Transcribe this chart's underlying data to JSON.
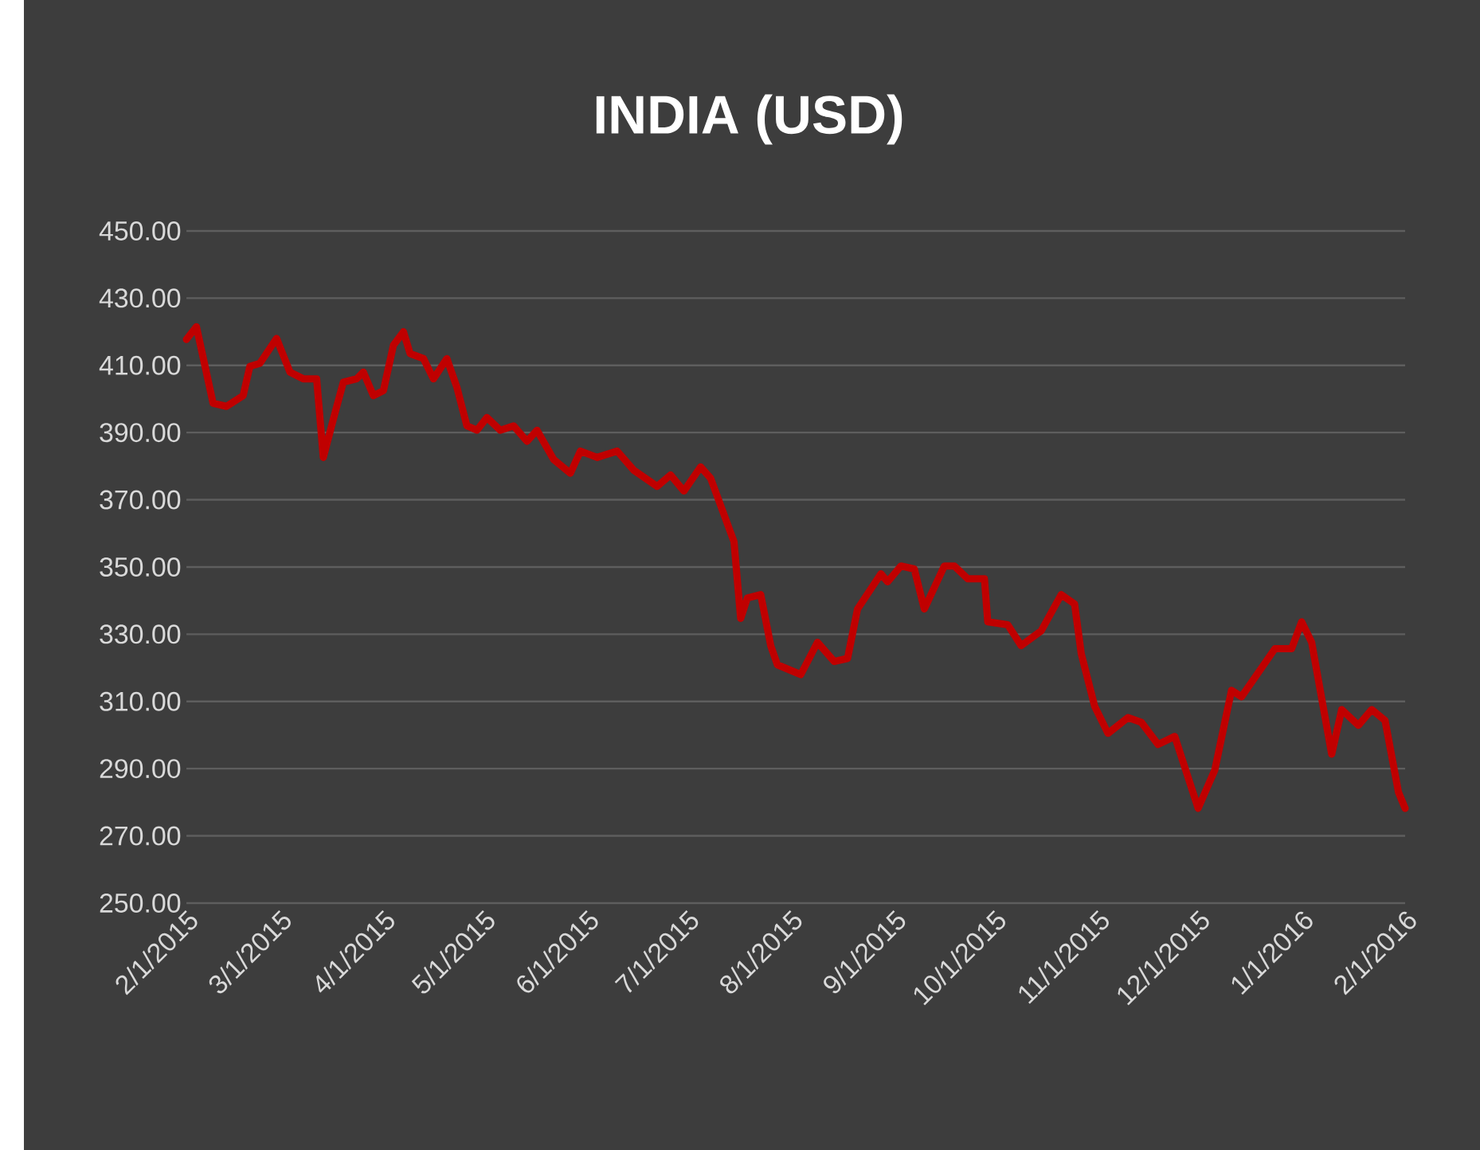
{
  "chart_data": {
    "type": "line",
    "title": "INDIA (USD)",
    "x": [
      "2015-02-01",
      "2015-02-04",
      "2015-02-09",
      "2015-02-13",
      "2015-02-18",
      "2015-02-20",
      "2015-02-23",
      "2015-02-28",
      "2015-03-04",
      "2015-03-08",
      "2015-03-12",
      "2015-03-14",
      "2015-03-17",
      "2015-03-20",
      "2015-03-24",
      "2015-03-26",
      "2015-03-29",
      "2015-04-01",
      "2015-04-04",
      "2015-04-07",
      "2015-04-09",
      "2015-04-13",
      "2015-04-16",
      "2015-04-20",
      "2015-04-23",
      "2015-04-26",
      "2015-04-29",
      "2015-05-02",
      "2015-05-06",
      "2015-05-10",
      "2015-05-14",
      "2015-05-17",
      "2015-05-22",
      "2015-05-27",
      "2015-05-30",
      "2015-06-04",
      "2015-06-10",
      "2015-06-15",
      "2015-06-22",
      "2015-06-26",
      "2015-06-30",
      "2015-07-05",
      "2015-07-08",
      "2015-07-15",
      "2015-07-17",
      "2015-07-19",
      "2015-07-23",
      "2015-07-26",
      "2015-07-28",
      "2015-08-04",
      "2015-08-09",
      "2015-08-14",
      "2015-08-18",
      "2015-08-21",
      "2015-08-28",
      "2015-08-30",
      "2015-09-03",
      "2015-09-07",
      "2015-09-10",
      "2015-09-16",
      "2015-09-19",
      "2015-09-23",
      "2015-09-28",
      "2015-09-29",
      "2015-10-05",
      "2015-10-09",
      "2015-10-15",
      "2015-10-21",
      "2015-10-25",
      "2015-10-27",
      "2015-10-31",
      "2015-11-04",
      "2015-11-10",
      "2015-11-14",
      "2015-11-19",
      "2015-11-24",
      "2015-12-01",
      "2015-12-06",
      "2015-12-11",
      "2015-12-14",
      "2015-12-24",
      "2015-12-29",
      "2016-01-01",
      "2016-01-04",
      "2016-01-10",
      "2016-01-13",
      "2016-01-18",
      "2016-01-22",
      "2016-01-26",
      "2016-01-30",
      "2016-02-01"
    ],
    "values": [
      417.7,
      421.5,
      398.7,
      397.8,
      401,
      409.7,
      410.6,
      418,
      408,
      406,
      406,
      382.6,
      394,
      405,
      406,
      408,
      401,
      402.5,
      416,
      420,
      413.5,
      412,
      406,
      412,
      403.5,
      392,
      390.7,
      394.5,
      390.7,
      392,
      387.4,
      390.7,
      382,
      377.9,
      384.5,
      382.6,
      384.5,
      378.8,
      374,
      377.4,
      372.6,
      379.8,
      376.4,
      357.5,
      334.7,
      340.8,
      341.8,
      326.6,
      320.9,
      318,
      327.6,
      321.9,
      322.8,
      337.5,
      348,
      345.6,
      350.3,
      349.4,
      337.5,
      350.3,
      350.3,
      346.5,
      346.5,
      333.7,
      332.8,
      326.6,
      331,
      341.8,
      339,
      324.2,
      308.6,
      300.5,
      305.2,
      303.8,
      297.2,
      299.6,
      278.2,
      289.6,
      313.3,
      311.4,
      325.7,
      325.7,
      333.7,
      327.6,
      294.3,
      307.6,
      302.9,
      307.6,
      304.3,
      283,
      278.2
    ],
    "color": "#c00000",
    "xlim": [
      "2015-02-01",
      "2016-02-01"
    ],
    "xticks": [
      {
        "value": "2015-02-01",
        "label": "2/1/2015"
      },
      {
        "value": "2015-03-01",
        "label": "3/1/2015"
      },
      {
        "value": "2015-04-01",
        "label": "4/1/2015"
      },
      {
        "value": "2015-05-01",
        "label": "5/1/2015"
      },
      {
        "value": "2015-06-01",
        "label": "6/1/2015"
      },
      {
        "value": "2015-07-01",
        "label": "7/1/2015"
      },
      {
        "value": "2015-08-01",
        "label": "8/1/2015"
      },
      {
        "value": "2015-09-01",
        "label": "9/1/2015"
      },
      {
        "value": "2015-10-01",
        "label": "10/1/2015"
      },
      {
        "value": "2015-11-01",
        "label": "11/1/2015"
      },
      {
        "value": "2015-12-01",
        "label": "12/1/2015"
      },
      {
        "value": "2016-01-01",
        "label": "1/1/2016"
      },
      {
        "value": "2016-02-01",
        "label": "2/1/2016"
      }
    ],
    "ylim": [
      250,
      450
    ],
    "yticks": [
      {
        "value": 250,
        "label": "250.00"
      },
      {
        "value": 270,
        "label": "270.00"
      },
      {
        "value": 290,
        "label": "290.00"
      },
      {
        "value": 310,
        "label": "310.00"
      },
      {
        "value": 330,
        "label": "330.00"
      },
      {
        "value": 350,
        "label": "350.00"
      },
      {
        "value": 370,
        "label": "370.00"
      },
      {
        "value": 390,
        "label": "390.00"
      },
      {
        "value": 410,
        "label": "410.00"
      },
      {
        "value": 430,
        "label": "430.00"
      },
      {
        "value": 450,
        "label": "450.00"
      }
    ],
    "grid": "y"
  }
}
